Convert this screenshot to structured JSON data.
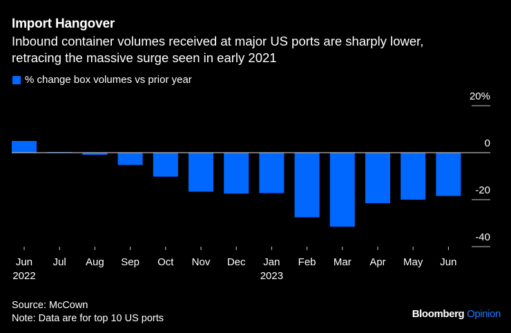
{
  "header": {
    "title": "Import Hangover",
    "subtitle_line1": "Inbound container volumes received at major US ports are sharply lower,",
    "subtitle_line2": "retracing the massive surge seen in early 2021"
  },
  "legend": {
    "label": "% change box volumes vs prior year",
    "color": "#0068FF"
  },
  "footer": {
    "source": "Source: McCown",
    "note": "Note: Data are for top 10 US ports"
  },
  "brand": {
    "name": "Bloomberg",
    "suffix": "Opinion",
    "suffix_color": "#1F7BFF"
  },
  "chart_data": {
    "type": "bar",
    "title": "Import Hangover",
    "xlabel": "",
    "ylabel": "% change box volumes vs prior year",
    "categories": [
      "Jun",
      "Jul",
      "Aug",
      "Sep",
      "Oct",
      "Nov",
      "Dec",
      "Jan",
      "Feb",
      "Mar",
      "Apr",
      "May",
      "Jun"
    ],
    "category_sublabels": [
      "2022",
      "",
      "",
      "",
      "",
      "",
      "",
      "2023",
      "",
      "",
      "",
      "",
      ""
    ],
    "series": [
      {
        "name": "% change box volumes vs prior year",
        "color": "#0068FF",
        "values": [
          5.0,
          0.3,
          -0.9,
          -5.2,
          -10.2,
          -16.6,
          -17.4,
          -17.2,
          -27.5,
          -31.5,
          -21.5,
          -20.0,
          -18.4
        ]
      }
    ],
    "ylim": [
      -40,
      20
    ],
    "yticks": [
      20,
      0,
      -20,
      -40
    ],
    "ytick_labels": [
      "20%",
      "0",
      "-20",
      "-40"
    ],
    "y_axis_position": "right",
    "legend_position": "top-left",
    "grid": false,
    "zero_line_color": "#BBBBBB"
  }
}
